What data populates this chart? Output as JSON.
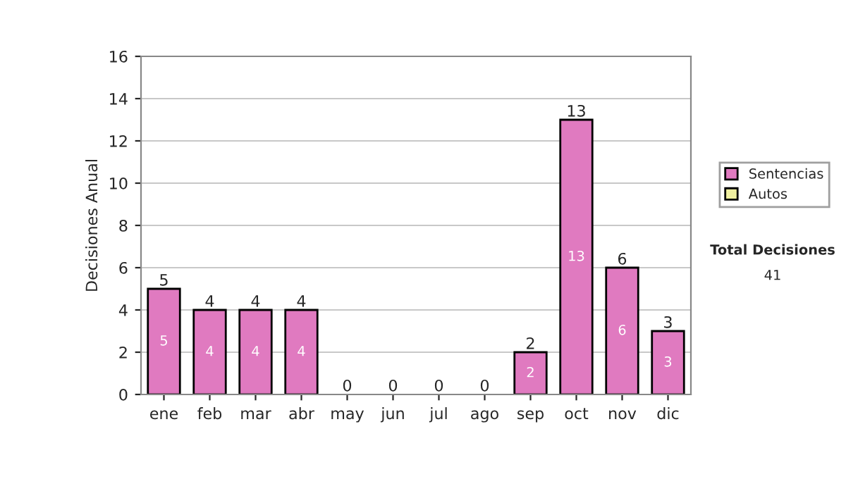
{
  "chart_data": {
    "type": "bar",
    "stacked": true,
    "ylabel": "Decisiones Anual",
    "categories": [
      "ene",
      "feb",
      "mar",
      "abr",
      "may",
      "jun",
      "jul",
      "ago",
      "sep",
      "oct",
      "nov",
      "dic"
    ],
    "series": [
      {
        "name": "Sentencias",
        "color": "#e07ac0",
        "values": [
          5,
          4,
          4,
          4,
          0,
          0,
          0,
          0,
          2,
          13,
          6,
          3
        ],
        "value_labels": [
          "5",
          "4",
          "4",
          "4",
          null,
          null,
          null,
          null,
          "2",
          "13",
          "6",
          "3"
        ]
      },
      {
        "name": "Autos",
        "color": "#f0f0a0",
        "values": [
          0,
          0,
          0,
          0,
          0,
          0,
          0,
          0,
          0,
          0,
          0,
          0
        ]
      }
    ],
    "totals": [
      "5",
      "4",
      "4",
      "4",
      "0",
      "0",
      "0",
      "0",
      "2",
      "13",
      "6",
      "3"
    ],
    "ylim": [
      0,
      16
    ],
    "yticks": [
      0,
      2,
      4,
      6,
      8,
      10,
      12,
      14,
      16
    ],
    "grid": "y",
    "legend": "right",
    "annotations": [
      "Total Decisiones",
      "41"
    ]
  }
}
